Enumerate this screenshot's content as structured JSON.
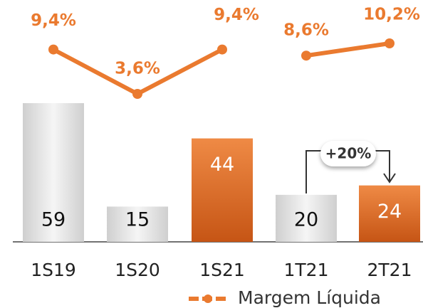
{
  "chart_data": {
    "type": "bar",
    "categories": [
      "1S19",
      "1S20",
      "1S21",
      "1T21",
      "2T21"
    ],
    "values": [
      59,
      15,
      44,
      20,
      24
    ],
    "colors": [
      "#d9d9d9",
      "#d9d9d9",
      "#e0722a",
      "#d9d9d9",
      "#e0722a"
    ],
    "line": {
      "type": "line",
      "name": "Margem Líquida",
      "color": "#ea7a2f",
      "values": [
        9.4,
        3.6,
        9.4,
        8.6,
        10.2
      ],
      "value_labels": [
        "9,4%",
        "3,6%",
        "9,4%",
        "8,6%",
        "10,2%"
      ],
      "gap_after": 2
    },
    "annotation": "+20%"
  }
}
